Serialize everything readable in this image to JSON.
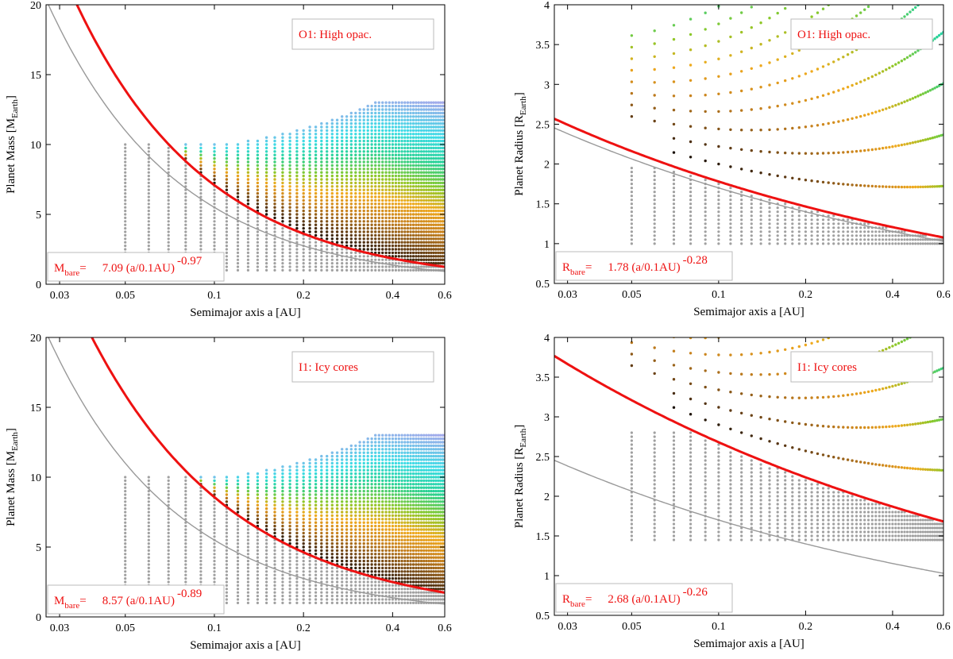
{
  "colors": {
    "fit": "#ee1111",
    "reference": "#999999",
    "bare_points": "#a0a0a0",
    "label": "#ee1111"
  },
  "chart_data": [
    {
      "type": "scatter",
      "id": "mass-high-opacity",
      "legend": "O1: High opac.",
      "xlabel": "Semimajor axis a [AU]",
      "ylabel_main": "Planet Mass [M",
      "ylabel_sub": "Earth",
      "ylabel_end": "]",
      "xscale": "log",
      "xlim": [
        0.027,
        0.6
      ],
      "ylim": [
        0,
        20
      ],
      "xticks": [
        0.03,
        0.05,
        0.1,
        0.2,
        0.4,
        0.6
      ],
      "xtick_labels": [
        "0.03",
        "0.05",
        "0.1",
        "0.2",
        "0.4",
        "0.6"
      ],
      "yticks": [
        0,
        5,
        10,
        15,
        20
      ],
      "ytick_labels": [
        "0",
        "5",
        "10",
        "15",
        "20"
      ],
      "fit_label": {
        "sym": "M",
        "sub": "bare",
        "eq": "=",
        "coef": "7.09 (a/0.1AU)",
        "exp": "-0.97"
      },
      "fit_curve": {
        "coef": 7.09,
        "exp": -0.97
      },
      "reference_curve": {
        "coef": 5.5,
        "exp": -1.0
      },
      "kind": "mass",
      "threshold_mass": 10.0,
      "max_mass": 13.0,
      "min_mass": 1.0
    },
    {
      "type": "scatter",
      "id": "radius-high-opacity",
      "legend": "O1: High opac.",
      "xlabel": "Semimajor axis a [AU]",
      "ylabel_main": "Planet Radius [R",
      "ylabel_sub": "Earth",
      "ylabel_end": "]",
      "xscale": "log",
      "xlim": [
        0.027,
        0.6
      ],
      "ylim": [
        0.5,
        4
      ],
      "xticks": [
        0.03,
        0.05,
        0.1,
        0.2,
        0.4,
        0.6
      ],
      "xtick_labels": [
        "0.03",
        "0.05",
        "0.1",
        "0.2",
        "0.4",
        "0.6"
      ],
      "yticks": [
        0.5,
        1,
        1.5,
        2,
        2.5,
        3,
        3.5,
        4
      ],
      "ytick_labels": [
        "0.5",
        "1",
        "1.5",
        "2",
        "2.5",
        "3",
        "3.5",
        "4"
      ],
      "fit_label": {
        "sym": "R",
        "sub": "bare",
        "eq": "=",
        "coef": "1.78 (a/0.1AU)",
        "exp": "-0.28"
      },
      "fit_curve": {
        "coef": 1.78,
        "exp": -0.28
      },
      "reference_curve": {
        "coef": 1.7,
        "exp": -0.28
      },
      "kind": "radius",
      "bare_min": 1.0,
      "bare_max": 1.95
    },
    {
      "type": "scatter",
      "id": "mass-icy-cores",
      "legend": "I1: Icy cores",
      "xlabel": "Semimajor axis a [AU]",
      "ylabel_main": "Planet Mass [M",
      "ylabel_sub": "Earth",
      "ylabel_end": "]",
      "xscale": "log",
      "xlim": [
        0.027,
        0.6
      ],
      "ylim": [
        0,
        20
      ],
      "xticks": [
        0.03,
        0.05,
        0.1,
        0.2,
        0.4,
        0.6
      ],
      "xtick_labels": [
        "0.03",
        "0.05",
        "0.1",
        "0.2",
        "0.4",
        "0.6"
      ],
      "yticks": [
        0,
        5,
        10,
        15,
        20
      ],
      "ytick_labels": [
        "0",
        "5",
        "10",
        "15",
        "20"
      ],
      "fit_label": {
        "sym": "M",
        "sub": "bare",
        "eq": "=",
        "coef": "8.57 (a/0.1AU)",
        "exp": "-0.89"
      },
      "fit_curve": {
        "coef": 8.57,
        "exp": -0.89
      },
      "reference_curve": {
        "coef": 5.5,
        "exp": -1.0
      },
      "kind": "mass",
      "threshold_mass": 10.0,
      "max_mass": 13.0,
      "min_mass": 1.0
    },
    {
      "type": "scatter",
      "id": "radius-icy-cores",
      "legend": "I1: Icy cores",
      "xlabel": "Semimajor axis a [AU]",
      "ylabel_main": "Planet Radius [R",
      "ylabel_sub": "Earth",
      "ylabel_end": "]",
      "xscale": "log",
      "xlim": [
        0.027,
        0.6
      ],
      "ylim": [
        0.5,
        4
      ],
      "xticks": [
        0.03,
        0.05,
        0.1,
        0.2,
        0.4,
        0.6
      ],
      "xtick_labels": [
        "0.03",
        "0.05",
        "0.1",
        "0.2",
        "0.4",
        "0.6"
      ],
      "yticks": [
        0.5,
        1,
        1.5,
        2,
        2.5,
        3,
        3.5,
        4
      ],
      "ytick_labels": [
        "0.5",
        "1",
        "1.5",
        "2",
        "2.5",
        "3",
        "3.5",
        "4"
      ],
      "fit_label": {
        "sym": "R",
        "sub": "bare",
        "eq": "=",
        "coef": "2.68 (a/0.1AU)",
        "exp": "-0.26"
      },
      "fit_curve": {
        "coef": 2.68,
        "exp": -0.26
      },
      "reference_curve": {
        "coef": 1.7,
        "exp": -0.28
      },
      "kind": "radius",
      "bare_min": 1.45,
      "bare_max": 2.8
    }
  ]
}
